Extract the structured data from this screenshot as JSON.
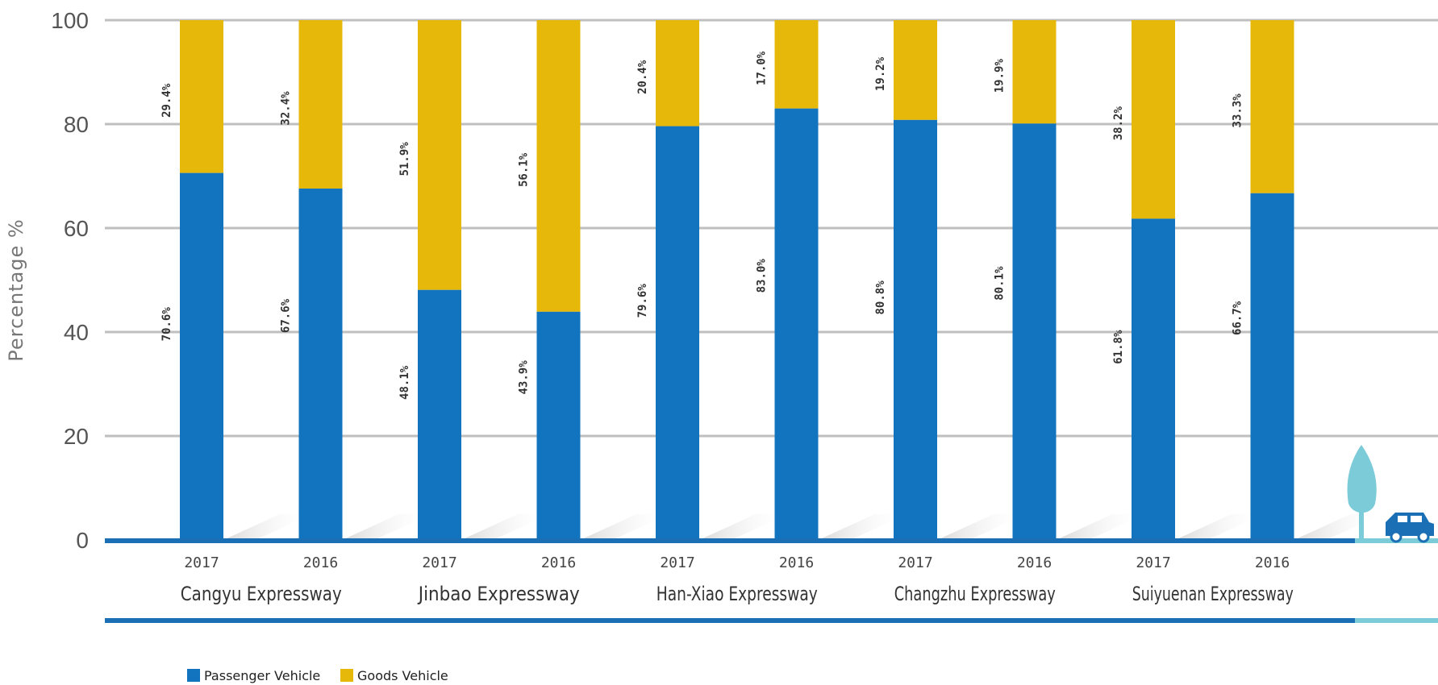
{
  "chart_data": {
    "type": "bar",
    "stacked": true,
    "ylabel": "Percentage %",
    "ylim": [
      0,
      100
    ],
    "yticks": [
      "0",
      "20",
      "40",
      "60",
      "80",
      "100"
    ],
    "groups": [
      {
        "name": "Cangyu Expressway",
        "years": [
          "2017",
          "2016"
        ]
      },
      {
        "name": "Jinbao Expressway",
        "years": [
          "2017",
          "2016"
        ]
      },
      {
        "name": "Han-Xiao Expressway",
        "years": [
          "2017",
          "2016"
        ]
      },
      {
        "name": "Changzhu Expressway",
        "years": [
          "2017",
          "2016"
        ]
      },
      {
        "name": "Suiyuenan Expressway",
        "years": [
          "2017",
          "2016"
        ]
      }
    ],
    "series": [
      {
        "name": "Passenger Vehicle",
        "color": "#1273be",
        "values": [
          70.6,
          67.6,
          48.1,
          43.9,
          79.6,
          83.0,
          80.8,
          80.1,
          61.8,
          66.7
        ],
        "labels": [
          "70.6%",
          "67.6%",
          "48.1%",
          "43.9%",
          "79.6%",
          "83.0%",
          "80.8%",
          "80.1%",
          "61.8%",
          "66.7%"
        ]
      },
      {
        "name": "Goods Vehicle",
        "color": "#e6b80a",
        "values": [
          29.4,
          32.4,
          51.9,
          56.1,
          20.4,
          17.0,
          19.2,
          19.9,
          38.2,
          33.3
        ],
        "labels": [
          "29.4%",
          "32.4%",
          "51.9%",
          "56.1%",
          "20.4%",
          "17.0%",
          "19.2%",
          "19.9%",
          "38.2%",
          "33.3%"
        ]
      }
    ],
    "legend": "bottom-left",
    "grid": true,
    "colors": {
      "axis": "#1a6fb5",
      "axis_light": "#7ccbd8",
      "tree": "#7ccbd8",
      "car": "#1a6fb5",
      "grid": "#bfbfbf"
    }
  },
  "decoration": {
    "tree_icon": "tree-icon",
    "car_icon": "car-icon"
  }
}
